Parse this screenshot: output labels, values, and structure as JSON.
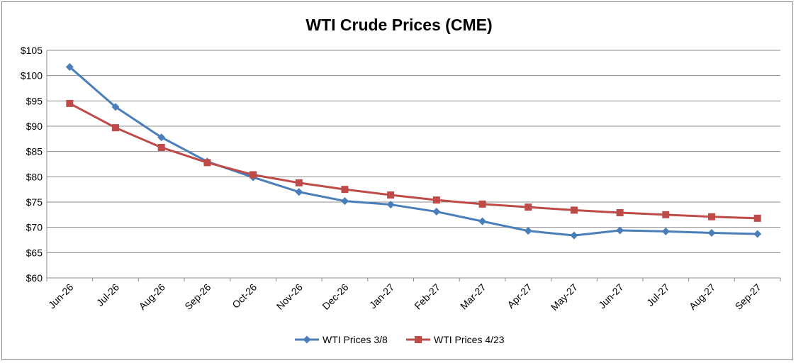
{
  "chart_data": {
    "type": "line",
    "title": "WTI Crude Prices (CME)",
    "xlabel": "",
    "ylabel": "",
    "categories": [
      "Jun-26",
      "Jul-26",
      "Aug-26",
      "Sep-26",
      "Oct-26",
      "Nov-26",
      "Dec-26",
      "Jan-27",
      "Feb-27",
      "Mar-27",
      "Apr-27",
      "May-27",
      "Jun-27",
      "Jul-27",
      "Aug-27",
      "Sep-27"
    ],
    "ylim": [
      60,
      105
    ],
    "ytick_step": 5,
    "ytick_prefix": "$",
    "grid": true,
    "legend_position": "bottom",
    "series": [
      {
        "name": "WTI Prices 3/8",
        "color": "#4a7ebb",
        "marker": "diamond",
        "values": [
          101.7,
          93.8,
          87.8,
          83.0,
          79.9,
          77.0,
          75.2,
          74.5,
          73.1,
          71.2,
          69.3,
          68.4,
          69.4,
          69.2,
          68.9,
          68.7
        ]
      },
      {
        "name": "WTI Prices 4/23",
        "color": "#be4b48",
        "marker": "square",
        "values": [
          94.5,
          89.7,
          85.8,
          82.8,
          80.4,
          78.8,
          77.5,
          76.4,
          75.4,
          74.6,
          74.0,
          73.4,
          72.9,
          72.5,
          72.1,
          71.8
        ]
      }
    ]
  }
}
